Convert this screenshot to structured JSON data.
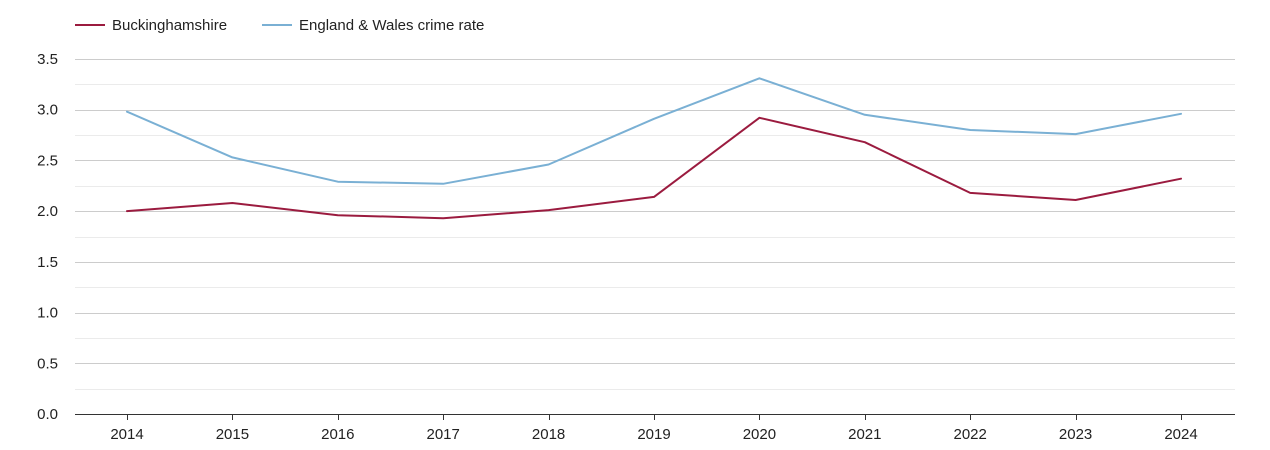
{
  "chart_data": {
    "type": "line",
    "title": "",
    "xlabel": "",
    "ylabel": "",
    "x": [
      "2014",
      "2015",
      "2016",
      "2017",
      "2018",
      "2019",
      "2020",
      "2021",
      "2022",
      "2023",
      "2024"
    ],
    "series": [
      {
        "name": "Buckinghamshire",
        "color": "#9b1b3f",
        "values": [
          2.0,
          2.08,
          1.96,
          1.93,
          2.01,
          2.14,
          2.92,
          2.68,
          2.18,
          2.11,
          2.32
        ]
      },
      {
        "name": "England & Wales crime rate",
        "color": "#7ab0d4",
        "values": [
          2.98,
          2.53,
          2.29,
          2.27,
          2.46,
          2.91,
          3.31,
          2.95,
          2.8,
          2.76,
          2.96
        ]
      }
    ],
    "ylim": [
      0,
      3.5
    ],
    "yticks": [
      "0.0",
      "0.5",
      "1.0",
      "1.5",
      "2.0",
      "2.5",
      "3.0",
      "3.5"
    ],
    "grid": true,
    "legend_position": "top-left"
  }
}
